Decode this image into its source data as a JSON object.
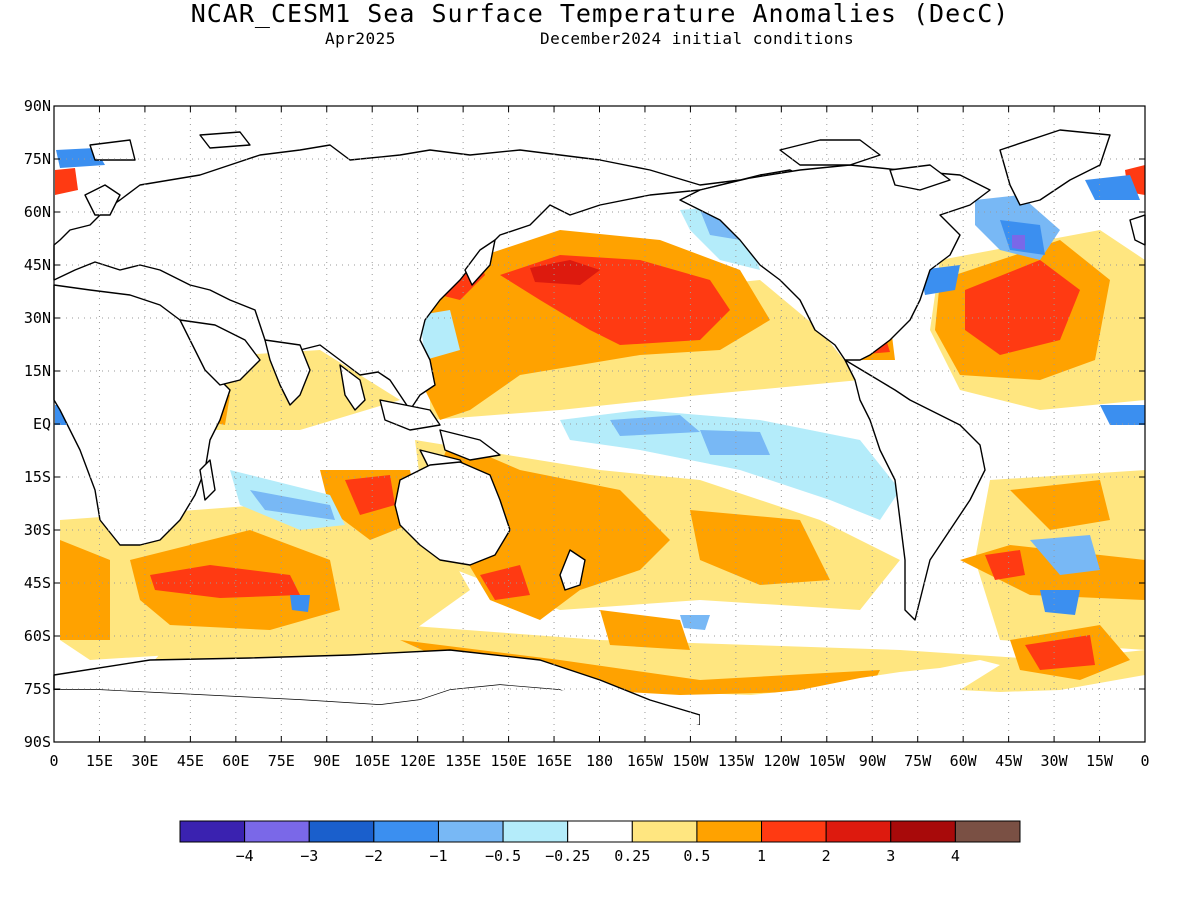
{
  "title": "NCAR_CESM1 Sea Surface Temperature Anomalies (DecC)",
  "subtitle_left": "Apr2025",
  "subtitle_right": "December2024 initial conditions",
  "lat_labels": [
    "90N",
    "75N",
    "60N",
    "45N",
    "30N",
    "15N",
    "EQ",
    "15S",
    "30S",
    "45S",
    "60S",
    "75S",
    "90S"
  ],
  "lon_labels": [
    "0",
    "15E",
    "30E",
    "45E",
    "60E",
    "75E",
    "90E",
    "105E",
    "120E",
    "135E",
    "150E",
    "165E",
    "180",
    "165W",
    "150W",
    "135W",
    "120W",
    "105W",
    "90W",
    "75W",
    "60W",
    "45W",
    "30W",
    "15W",
    "0"
  ],
  "legend": {
    "colors": [
      "#3a22b0",
      "#7a68e8",
      "#1a5fcc",
      "#3b8ff0",
      "#78b8f5",
      "#b4ecfa",
      "#ffffff",
      "#ffe680",
      "#ffa200",
      "#ff3a12",
      "#dd1a0e",
      "#a80a0a",
      "#7a5044"
    ],
    "labels": [
      "-4",
      "-3",
      "-2",
      "-1",
      "-0.5",
      "-0.25",
      "0.25",
      "0.5",
      "1",
      "2",
      "3",
      "4"
    ]
  },
  "colors": {
    "land": "#ffffff",
    "coastline": "#000000",
    "grid": "#9a9a9a"
  }
}
